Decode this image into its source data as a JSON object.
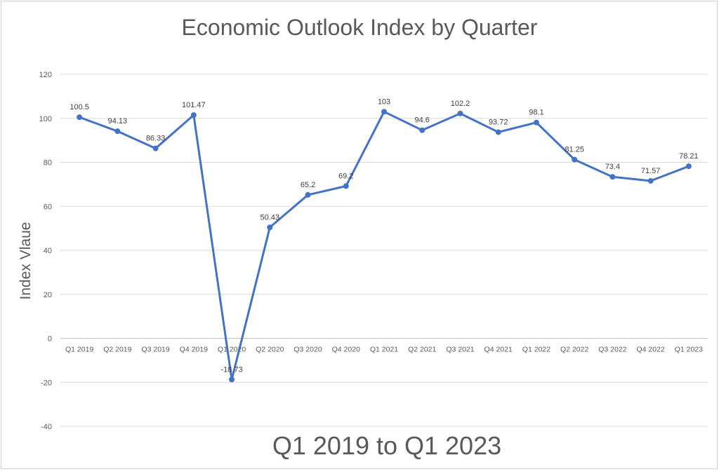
{
  "chart_data": {
    "type": "line",
    "title": "Economic Outlook Index by Quarter",
    "xlabel": "Q1 2019 to Q1 2023",
    "ylabel": "Index Vlaue",
    "ylim": [
      -40,
      120
    ],
    "yticks": [
      -40,
      -20,
      0,
      20,
      40,
      60,
      80,
      100,
      120
    ],
    "grid": true,
    "legend": "none",
    "series_color": "#4472C4",
    "categories": [
      "Q1 2019",
      "Q2 2019",
      "Q3 2019",
      "Q4 2019",
      "Q1 2020",
      "Q2 2020",
      "Q3 2020",
      "Q4 2020",
      "Q1 2021",
      "Q2 2021",
      "Q3 2021",
      "Q4 2021",
      "Q1 2022",
      "Q2 2022",
      "Q3 2022",
      "Q4 2022",
      "Q1 2023"
    ],
    "values": [
      100.5,
      94.13,
      86.33,
      101.47,
      -18.73,
      50.43,
      65.2,
      69.2,
      103,
      94.6,
      102.2,
      93.72,
      98.1,
      81.25,
      73.4,
      71.57,
      78.21
    ],
    "data_labels": [
      "100.5",
      "94.13",
      "86.33",
      "101.47",
      "-18.73",
      "50.43",
      "65.2",
      "69.2",
      "103",
      "94.6",
      "102.2",
      "93.72",
      "98.1",
      "81.25",
      "73.4",
      "71.57",
      "78.21"
    ]
  }
}
